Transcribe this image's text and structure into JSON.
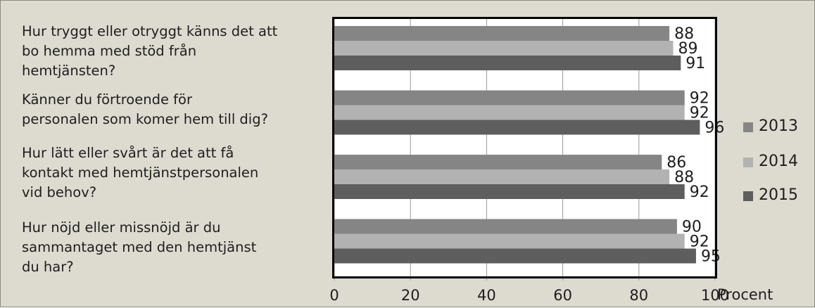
{
  "chart_data": {
    "type": "bar",
    "orientation": "horizontal",
    "categories": [
      "Hur tryggt eller otryggt känns det att bo hemma med stöd från hemtjänsten?",
      "Känner du förtroende för personalen som komer hem till dig?",
      "Hur lätt eller svårt är det att få kontakt med hemtjänstpersonalen vid behov?",
      "Hur nöjd eller missnöjd är du sammantaget med den hemtjänst du har?"
    ],
    "category_lines": [
      [
        "Hur tryggt eller otryggt känns det att",
        "bo hemma med stöd från",
        "hemtjänsten?"
      ],
      [
        "Känner du förtroende för",
        "personalen som komer hem till dig?"
      ],
      [
        "Hur lätt eller svårt är det att få",
        "kontakt med hemtjänstpersonalen",
        "vid behov?"
      ],
      [
        "Hur nöjd eller missnöjd är du",
        "sammantaget med den hemtjänst",
        "du har?"
      ]
    ],
    "series": [
      {
        "name": "2013",
        "color": "#858585",
        "values": [
          88,
          92,
          86,
          90
        ]
      },
      {
        "name": "2014",
        "color": "#b2b2b2",
        "values": [
          89,
          92,
          88,
          92
        ]
      },
      {
        "name": "2015",
        "color": "#5e5e5e",
        "values": [
          91,
          96,
          92,
          95
        ]
      }
    ],
    "xlim": [
      0,
      100
    ],
    "xticks": [
      0,
      20,
      40,
      60,
      80,
      100
    ],
    "xlabel": "Procent",
    "grid": true,
    "legend_position": "right",
    "data_labels": true
  }
}
